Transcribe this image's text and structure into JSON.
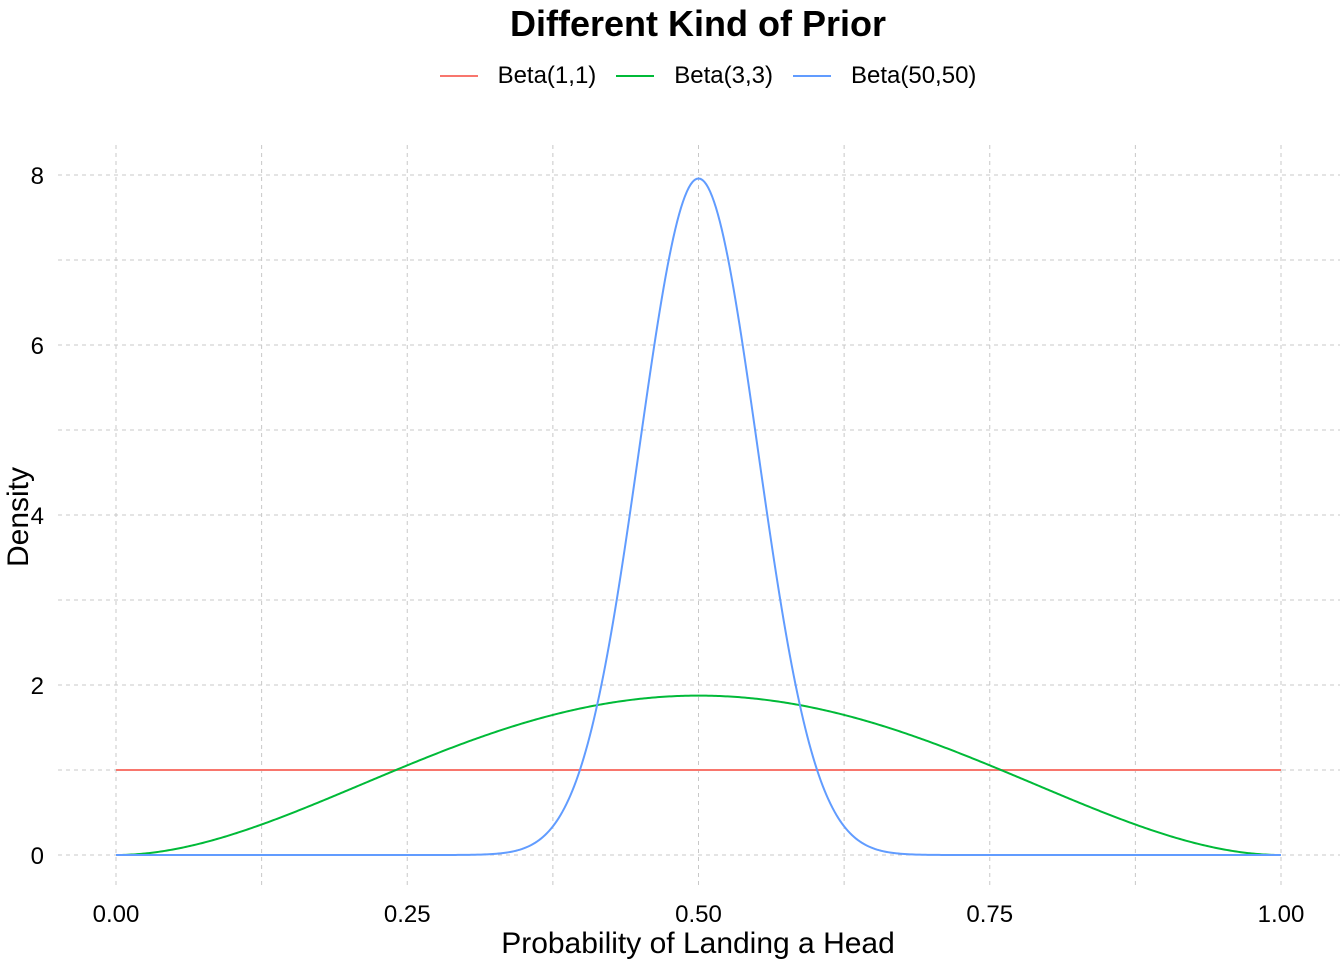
{
  "chart_data": {
    "type": "line",
    "title": "Different Kind of Prior",
    "xlabel": "Probability of Landing a Head",
    "ylabel": "Density",
    "xlim": [
      0,
      1
    ],
    "ylim": [
      0,
      8
    ],
    "x_ticks": [
      "0.00",
      "0.25",
      "0.50",
      "0.75",
      "1.00"
    ],
    "y_ticks": [
      "0",
      "2",
      "4",
      "6",
      "8"
    ],
    "grid": "dashed, major and minor",
    "legend_position": "top",
    "series": [
      {
        "name": "Beta(1,1)",
        "color": "#F8766D",
        "alpha": 1,
        "beta": 1
      },
      {
        "name": "Beta(3,3)",
        "color": "#00BA38",
        "alpha": 3,
        "beta": 3
      },
      {
        "name": "Beta(50,50)",
        "color": "#619CFF",
        "alpha": 50,
        "beta": 50
      }
    ]
  }
}
